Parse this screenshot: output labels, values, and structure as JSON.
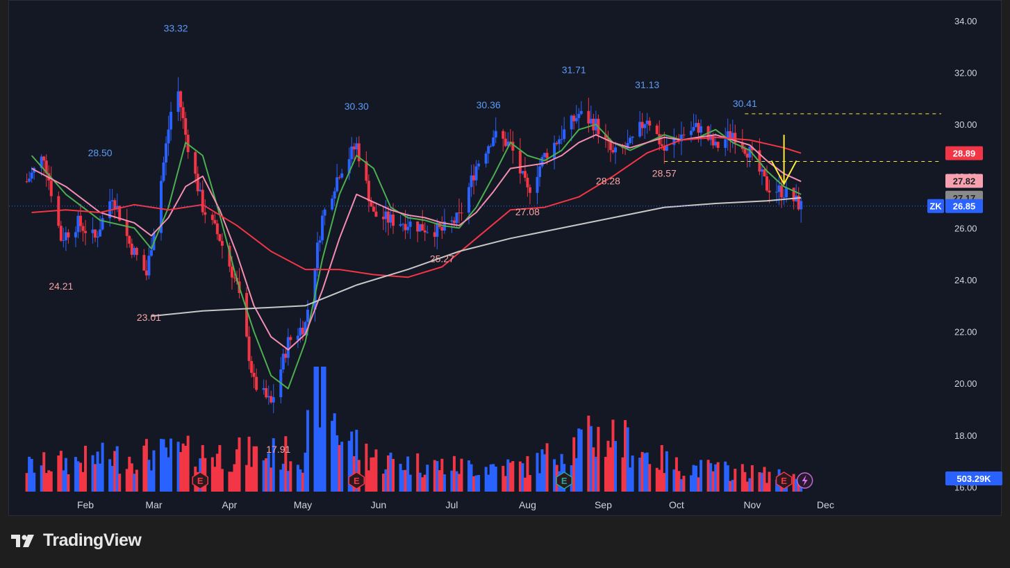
{
  "chart_data": {
    "type": "candlestick",
    "y_axis": {
      "ticks": [
        "34.00",
        "32.00",
        "30.00",
        "28.00",
        "26.00",
        "24.00",
        "22.00",
        "20.00",
        "18.00",
        "16.00"
      ],
      "range": [
        16,
        34.5
      ]
    },
    "x_axis": {
      "months": [
        "Feb",
        "Mar",
        "Apr",
        "May",
        "Jun",
        "Jul",
        "Aug",
        "Sep",
        "Oct",
        "Nov",
        "Dec"
      ]
    },
    "annotations": [
      {
        "label": "33.32",
        "date": "Mar 10",
        "value": 33.32,
        "kind": "high"
      },
      {
        "label": "28.50",
        "date": "Feb 7",
        "value": 28.5,
        "kind": "high"
      },
      {
        "label": "30.30",
        "date": "May 23",
        "value": 30.3,
        "kind": "high"
      },
      {
        "label": "30.36",
        "date": "Jul 16",
        "value": 30.36,
        "kind": "high"
      },
      {
        "label": "31.71",
        "date": "Aug 20",
        "value": 31.71,
        "kind": "high"
      },
      {
        "label": "31.13",
        "date": "Sep 19",
        "value": 31.13,
        "kind": "high"
      },
      {
        "label": "30.41",
        "date": "Oct 29",
        "value": 30.41,
        "kind": "high"
      },
      {
        "label": "24.21",
        "date": "Jan 22",
        "value": 24.21,
        "kind": "low"
      },
      {
        "label": "23.01",
        "date": "Feb 27",
        "value": 23.01,
        "kind": "low"
      },
      {
        "label": "17.91",
        "date": "Apr 21",
        "value": 17.91,
        "kind": "low"
      },
      {
        "label": "25.27",
        "date": "Jun 27",
        "value": 25.27,
        "kind": "low"
      },
      {
        "label": "27.08",
        "date": "Aug 1",
        "value": 27.08,
        "kind": "low"
      },
      {
        "label": "28.28",
        "date": "Sep 3",
        "value": 28.28,
        "kind": "low"
      },
      {
        "label": "28.57",
        "date": "Sep 26",
        "value": 28.57,
        "kind": "low"
      }
    ],
    "price_tags": [
      {
        "label": "28.89",
        "value": 28.89,
        "color": "#f23645",
        "text_color": "#ffffff"
      },
      {
        "label": "27.82",
        "value": 27.82,
        "color": "#f7a1b0",
        "text_color": "#1e1e1e"
      },
      {
        "label": "27.17",
        "value": 27.17,
        "color": "#8a8a8a",
        "text_color": "#1e1e1e"
      }
    ],
    "last_price": {
      "symbol": "ZK",
      "value": 26.85,
      "label": "26.85"
    },
    "volume_tag": "503.29K",
    "resistance_lines": [
      30.41,
      28.57
    ],
    "moving_averages": [
      {
        "color": "#4caf50",
        "points": [
          [
            "Jan 10",
            28.8
          ],
          [
            "Jan 24",
            27.3
          ],
          [
            "Feb 7",
            26.3
          ],
          [
            "Feb 21",
            26.0
          ],
          [
            "Feb 28",
            25.2
          ],
          [
            "Mar 7",
            26.8
          ],
          [
            "Mar 14",
            29.3
          ],
          [
            "Mar 21",
            28.8
          ],
          [
            "Mar 28",
            26.5
          ],
          [
            "Apr 4",
            24.0
          ],
          [
            "Apr 11",
            22.0
          ],
          [
            "Apr 18",
            20.3
          ],
          [
            "Apr 25",
            19.8
          ],
          [
            "May 2",
            21.6
          ],
          [
            "May 9",
            24.8
          ],
          [
            "May 16",
            27.3
          ],
          [
            "May 23",
            28.8
          ],
          [
            "May 30",
            28.3
          ],
          [
            "Jun 6",
            26.8
          ],
          [
            "Jun 13",
            26.4
          ],
          [
            "Jun 20",
            26.3
          ],
          [
            "Jun 27",
            26.1
          ],
          [
            "Jul 4",
            26.0
          ],
          [
            "Jul 11",
            26.8
          ],
          [
            "Jul 18",
            28.0
          ],
          [
            "Jul 25",
            29.3
          ],
          [
            "Aug 1",
            28.8
          ],
          [
            "Aug 8",
            28.6
          ],
          [
            "Aug 15",
            29.0
          ],
          [
            "Aug 22",
            29.8
          ],
          [
            "Aug 29",
            30.0
          ],
          [
            "Sep 5",
            29.3
          ],
          [
            "Sep 12",
            29.0
          ],
          [
            "Sep 19",
            29.3
          ],
          [
            "Sep 26",
            29.6
          ],
          [
            "Oct 3",
            29.4
          ],
          [
            "Oct 10",
            29.5
          ],
          [
            "Oct 17",
            29.8
          ],
          [
            "Oct 24",
            29.3
          ],
          [
            "Oct 31",
            29.0
          ],
          [
            "Nov 7",
            28.2
          ],
          [
            "Nov 14",
            27.6
          ],
          [
            "Nov 21",
            27.3
          ]
        ]
      },
      {
        "color": "#f48fb1",
        "points": [
          [
            "Jan 10",
            28.3
          ],
          [
            "Jan 24",
            27.6
          ],
          [
            "Feb 7",
            26.6
          ],
          [
            "Feb 21",
            26.2
          ],
          [
            "Feb 28",
            25.7
          ],
          [
            "Mar 7",
            26.4
          ],
          [
            "Mar 14",
            27.6
          ],
          [
            "Mar 21",
            28.0
          ],
          [
            "Mar 28",
            26.7
          ],
          [
            "Apr 4",
            25.0
          ],
          [
            "Apr 11",
            23.0
          ],
          [
            "Apr 18",
            21.8
          ],
          [
            "Apr 25",
            21.3
          ],
          [
            "May 2",
            21.9
          ],
          [
            "May 9",
            23.6
          ],
          [
            "May 16",
            25.6
          ],
          [
            "May 23",
            27.3
          ],
          [
            "May 30",
            27.0
          ],
          [
            "Jun 6",
            26.7
          ],
          [
            "Jun 13",
            26.5
          ],
          [
            "Jun 20",
            26.4
          ],
          [
            "Jun 27",
            26.2
          ],
          [
            "Jul 4",
            26.1
          ],
          [
            "Jul 11",
            26.6
          ],
          [
            "Jul 18",
            27.4
          ],
          [
            "Jul 25",
            28.3
          ],
          [
            "Aug 1",
            28.4
          ],
          [
            "Aug 8",
            28.5
          ],
          [
            "Aug 15",
            28.8
          ],
          [
            "Aug 22",
            29.3
          ],
          [
            "Aug 29",
            29.6
          ],
          [
            "Sep 5",
            29.3
          ],
          [
            "Sep 12",
            29.1
          ],
          [
            "Sep 19",
            29.3
          ],
          [
            "Sep 26",
            29.5
          ],
          [
            "Oct 3",
            29.4
          ],
          [
            "Oct 10",
            29.5
          ],
          [
            "Oct 17",
            29.6
          ],
          [
            "Oct 24",
            29.4
          ],
          [
            "Oct 31",
            29.2
          ],
          [
            "Nov 7",
            28.6
          ],
          [
            "Nov 14",
            28.1
          ],
          [
            "Nov 21",
            27.8
          ]
        ]
      },
      {
        "color": "#f23645",
        "points": [
          [
            "Jan 10",
            26.6
          ],
          [
            "Jan 24",
            26.7
          ],
          [
            "Feb 7",
            26.6
          ],
          [
            "Feb 21",
            26.9
          ],
          [
            "Mar 7",
            26.7
          ],
          [
            "Mar 21",
            26.9
          ],
          [
            "Apr 4",
            26.1
          ],
          [
            "Apr 18",
            25.1
          ],
          [
            "May 2",
            24.4
          ],
          [
            "May 16",
            24.4
          ],
          [
            "May 30",
            24.2
          ],
          [
            "Jun 13",
            24.1
          ],
          [
            "Jun 27",
            24.5
          ],
          [
            "Jul 11",
            25.6
          ],
          [
            "Jul 25",
            26.7
          ],
          [
            "Aug 8",
            26.8
          ],
          [
            "Aug 22",
            27.2
          ],
          [
            "Sep 5",
            28.0
          ],
          [
            "Sep 19",
            28.9
          ],
          [
            "Oct 3",
            29.4
          ],
          [
            "Oct 17",
            29.5
          ],
          [
            "Oct 31",
            29.4
          ],
          [
            "Nov 14",
            29.1
          ],
          [
            "Nov 21",
            28.89
          ]
        ]
      },
      {
        "color": "#c8c8c8",
        "points": [
          [
            "Feb 28",
            22.6
          ],
          [
            "Mar 21",
            22.8
          ],
          [
            "Apr 11",
            22.9
          ],
          [
            "May 2",
            23.0
          ],
          [
            "May 23",
            23.8
          ],
          [
            "Jun 13",
            24.4
          ],
          [
            "Jul 4",
            25.1
          ],
          [
            "Jul 25",
            25.6
          ],
          [
            "Aug 15",
            26.0
          ],
          [
            "Sep 5",
            26.4
          ],
          [
            "Sep 26",
            26.8
          ],
          [
            "Oct 17",
            26.95
          ],
          [
            "Nov 7",
            27.05
          ],
          [
            "Nov 21",
            27.17
          ]
        ]
      }
    ],
    "candle_path": [
      [
        "Jan 8",
        27.8
      ],
      [
        "Jan 15",
        28.8
      ],
      [
        "Jan 22",
        25.6
      ],
      [
        "Jan 29",
        26.2
      ],
      [
        "Feb 5",
        25.6
      ],
      [
        "Feb 12",
        27.3
      ],
      [
        "Feb 19",
        25.4
      ],
      [
        "Feb 26",
        24.2
      ],
      [
        "Mar 3",
        27.2
      ],
      [
        "Mar 10",
        31.8
      ],
      [
        "Mar 14",
        29.6
      ],
      [
        "Mar 21",
        26.8
      ],
      [
        "Mar 28",
        25.6
      ],
      [
        "Apr 4",
        23.8
      ],
      [
        "Apr 11",
        20.0
      ],
      [
        "Apr 18",
        19.2
      ],
      [
        "Apr 25",
        21.6
      ],
      [
        "May 2",
        22.3
      ],
      [
        "May 9",
        26.4
      ],
      [
        "May 16",
        28.2
      ],
      [
        "May 23",
        29.2
      ],
      [
        "May 30",
        26.5
      ],
      [
        "Jun 6",
        26.3
      ],
      [
        "Jun 13",
        26.2
      ],
      [
        "Jun 20",
        26.0
      ],
      [
        "Jun 27",
        25.9
      ],
      [
        "Jul 4",
        26.4
      ],
      [
        "Jul 11",
        28.4
      ],
      [
        "Jul 18",
        29.6
      ],
      [
        "Jul 25",
        29.2
      ],
      [
        "Aug 1",
        27.4
      ],
      [
        "Aug 8",
        28.8
      ],
      [
        "Aug 15",
        29.6
      ],
      [
        "Aug 22",
        30.4
      ],
      [
        "Aug 29",
        30.0
      ],
      [
        "Sep 5",
        28.8
      ],
      [
        "Sep 12",
        29.2
      ],
      [
        "Sep 19",
        30.3
      ],
      [
        "Sep 26",
        29.0
      ],
      [
        "Oct 3",
        29.6
      ],
      [
        "Oct 10",
        29.9
      ],
      [
        "Oct 17",
        29.1
      ],
      [
        "Oct 24",
        29.7
      ],
      [
        "Oct 31",
        28.9
      ],
      [
        "Nov 7",
        27.6
      ],
      [
        "Nov 14",
        27.4
      ],
      [
        "Nov 21",
        26.85
      ]
    ],
    "volume_path": [
      [
        "Jan 8",
        0.2
      ],
      [
        "Feb 1",
        0.25
      ],
      [
        "Mar 1",
        0.3
      ],
      [
        "Apr 1",
        0.3
      ],
      [
        "May 1",
        0.3
      ],
      [
        "May 9",
        1.0
      ],
      [
        "May 16",
        0.45
      ],
      [
        "Jun 1",
        0.25
      ],
      [
        "Jul 1",
        0.2
      ],
      [
        "Aug 1",
        0.2
      ],
      [
        "Aug 22",
        0.4
      ],
      [
        "Sep 5",
        0.45
      ],
      [
        "Sep 19",
        0.3
      ],
      [
        "Oct 1",
        0.2
      ],
      [
        "Nov 1",
        0.15
      ],
      [
        "Nov 21",
        0.1
      ]
    ],
    "earnings_markers": [
      {
        "date": "Mar 20",
        "label": "E",
        "color": "#f23645"
      },
      {
        "date": "May 23",
        "label": "E",
        "color": "#f23645"
      },
      {
        "date": "Aug 16",
        "label": "E",
        "color": "#26a69a"
      },
      {
        "date": "Nov 14",
        "label": "E",
        "color": "#f23645"
      }
    ],
    "signal_arrow": {
      "date": "Nov 14",
      "value": 29.6,
      "color": "#ffeb3b"
    },
    "colors": {
      "up": "#2962ff",
      "down": "#f23645",
      "grid": "#2a2e39"
    }
  },
  "branding": {
    "name": "TradingView",
    "logo": "tradingview-logo-icon"
  },
  "icons": {
    "flash": "flash-icon"
  }
}
